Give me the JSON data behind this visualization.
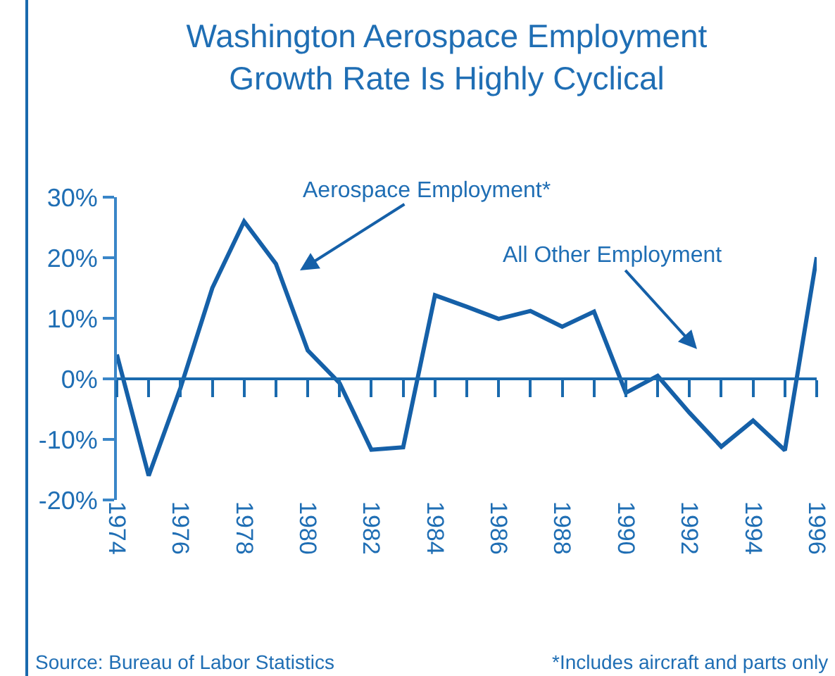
{
  "chart_data": {
    "type": "line",
    "title": "Washington Aerospace Employment\nGrowth Rate Is Highly Cyclical",
    "x": [
      1974,
      1975,
      1976,
      1977,
      1978,
      1979,
      1980,
      1981,
      1982,
      1983,
      1984,
      1985,
      1986,
      1987,
      1988,
      1989,
      1990,
      1991,
      1992,
      1993,
      1994,
      1995,
      1996
    ],
    "series": [
      {
        "color": "#1560a8",
        "values": [
          4,
          -16,
          -1.5,
          15,
          26,
          19,
          4.7,
          -0.7,
          -11.7,
          -11.3,
          13.8,
          11.9,
          9.9,
          11.2,
          8.6,
          11.1,
          -2.3,
          0.5,
          -5.6,
          -11.2,
          -6.9,
          -11.8,
          20.1
        ]
      }
    ],
    "xlim": [
      1974,
      1996
    ],
    "xticks": [
      1974,
      {
        "value": 1975,
        "label": null
      },
      1976,
      {
        "value": 1977,
        "label": null
      },
      1978,
      {
        "value": 1979,
        "label": null
      },
      1980,
      {
        "value": 1981,
        "label": null
      },
      1982,
      {
        "value": 1983,
        "label": null
      },
      1984,
      {
        "value": 1985,
        "label": null
      },
      1986,
      {
        "value": 1987,
        "label": null
      },
      1988,
      {
        "value": 1989,
        "label": null
      },
      1990,
      {
        "value": 1991,
        "label": null
      },
      1992,
      {
        "value": 1993,
        "label": null
      },
      1994,
      {
        "value": 1995,
        "label": null
      },
      1996
    ],
    "ylim": [
      -20,
      30
    ],
    "yticks": [
      {
        "value": -20,
        "label": "-20%"
      },
      {
        "value": -10,
        "label": "-10%"
      },
      {
        "value": 0,
        "label": "0%"
      },
      {
        "value": 10,
        "label": "10%"
      },
      {
        "value": 20,
        "label": "20%"
      },
      {
        "value": 30,
        "label": "30%"
      }
    ],
    "ref_lines": [
      {
        "axis": "y",
        "value": 0,
        "label": null
      }
    ],
    "annotations": [
      "Aerospace Employment*",
      "All Other Employment",
      "Source: Bureau of Labor Statistics",
      "*Includes aircraft and parts only"
    ],
    "grid": false,
    "marker": "none",
    "line_style": "solid"
  }
}
